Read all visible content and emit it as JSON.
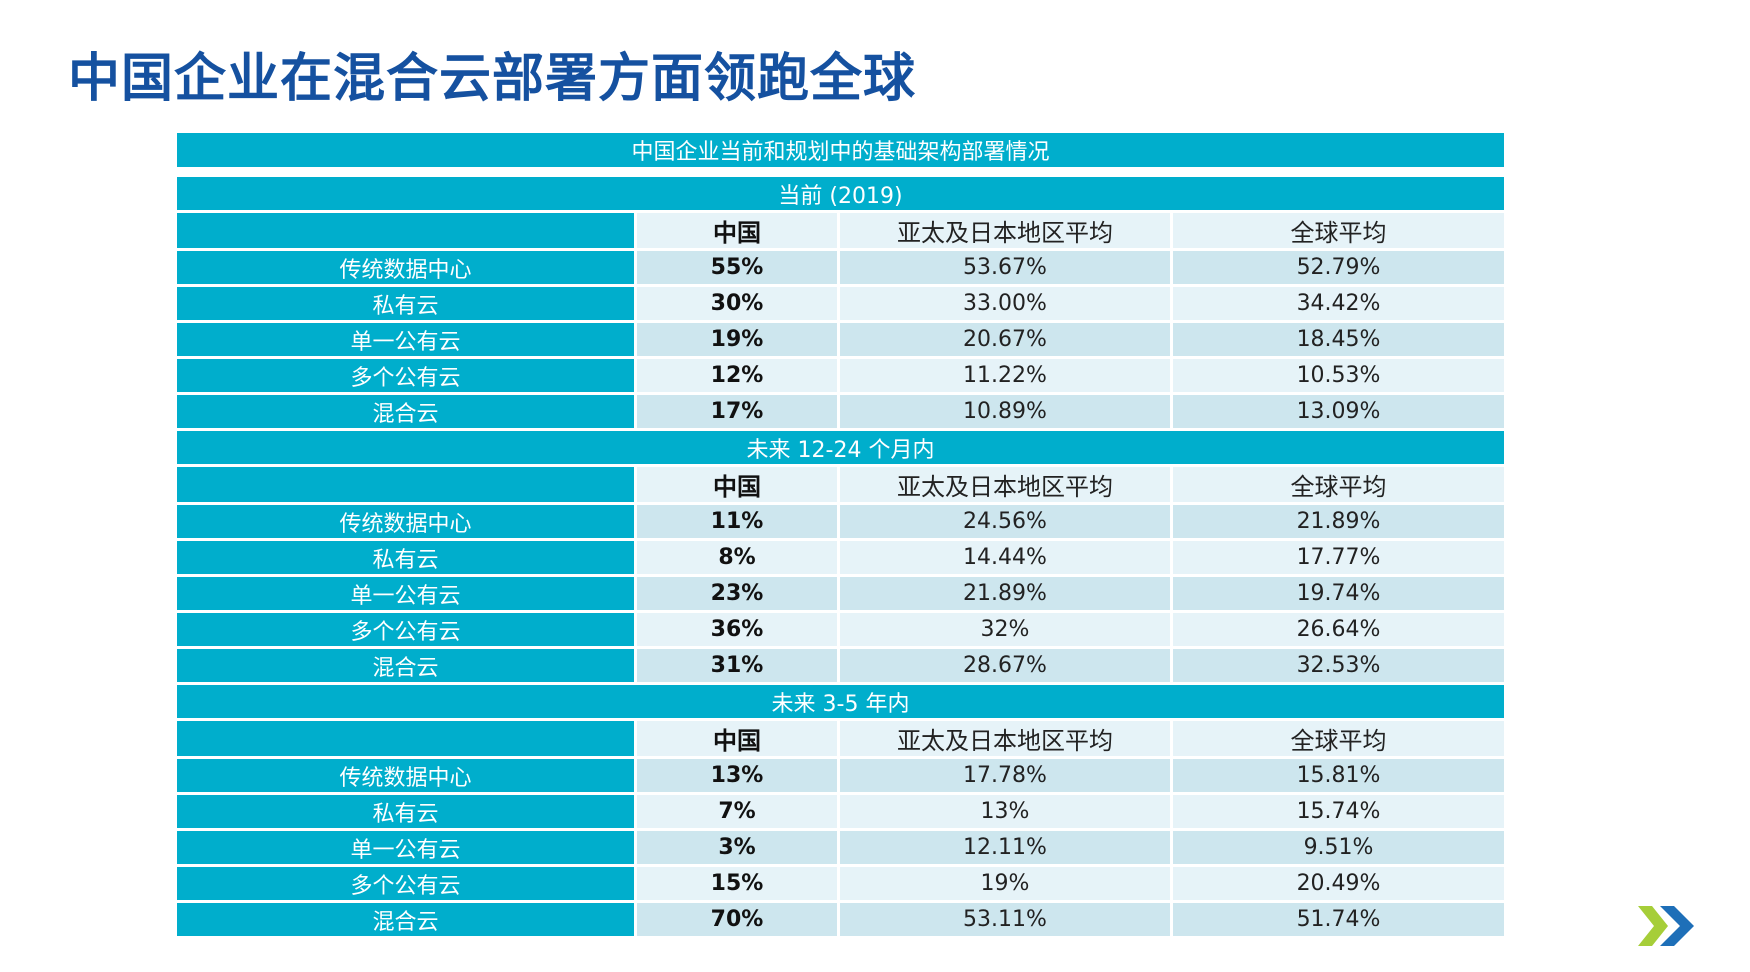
{
  "slide": {
    "title": "中国企业在混合云部署方面领跑全球"
  },
  "table": {
    "caption": "中国企业当前和规划中的基础架构部署情况",
    "sections": [
      {
        "label": "当前 (2019)",
        "headers": [
          "",
          "中国",
          "亚太及日本地区平均",
          "全球平均"
        ],
        "rows": [
          {
            "label": "传统数据中心",
            "china": "55%",
            "apj": "53.67%",
            "global": "52.79%"
          },
          {
            "label": "私有云",
            "china": "30%",
            "apj": "33.00%",
            "global": "34.42%"
          },
          {
            "label": "单一公有云",
            "china": "19%",
            "apj": "20.67%",
            "global": "18.45%"
          },
          {
            "label": "多个公有云",
            "china": "12%",
            "apj": "11.22%",
            "global": "10.53%"
          },
          {
            "label": "混合云",
            "china": "17%",
            "apj": "10.89%",
            "global": "13.09%"
          }
        ]
      },
      {
        "label": "未来 12-24 个月内",
        "headers": [
          "",
          "中国",
          "亚太及日本地区平均",
          "全球平均"
        ],
        "rows": [
          {
            "label": "传统数据中心",
            "china": "11%",
            "apj": "24.56%",
            "global": "21.89%"
          },
          {
            "label": "私有云",
            "china": "8%",
            "apj": "14.44%",
            "global": "17.77%"
          },
          {
            "label": "单一公有云",
            "china": "23%",
            "apj": "21.89%",
            "global": "19.74%"
          },
          {
            "label": "多个公有云",
            "china": "36%",
            "apj": "32%",
            "global": "26.64%"
          },
          {
            "label": "混合云",
            "china": "31%",
            "apj": "28.67%",
            "global": "32.53%"
          }
        ]
      },
      {
        "label": "未来 3-5 年内",
        "headers": [
          "",
          "中国",
          "亚太及日本地区平均",
          "全球平均"
        ],
        "rows": [
          {
            "label": "传统数据中心",
            "china": "13%",
            "apj": "17.78%",
            "global": "15.81%"
          },
          {
            "label": "私有云",
            "china": "7%",
            "apj": "13%",
            "global": "15.74%"
          },
          {
            "label": "单一公有云",
            "china": "3%",
            "apj": "12.11%",
            "global": "9.51%"
          },
          {
            "label": "多个公有云",
            "china": "15%",
            "apj": "19%",
            "global": "20.49%"
          },
          {
            "label": "混合云",
            "china": "70%",
            "apj": "53.11%",
            "global": "51.74%"
          }
        ]
      }
    ]
  },
  "colors": {
    "title": "#1551A0",
    "accent": "#00AECC",
    "row_light": "#E6F3F8",
    "row_mid": "#CDE6EE",
    "logo_green": "#A6CE39",
    "logo_blue": "#1E6FB8"
  },
  "logo": {
    "icon": "nutanix-x-logo"
  }
}
